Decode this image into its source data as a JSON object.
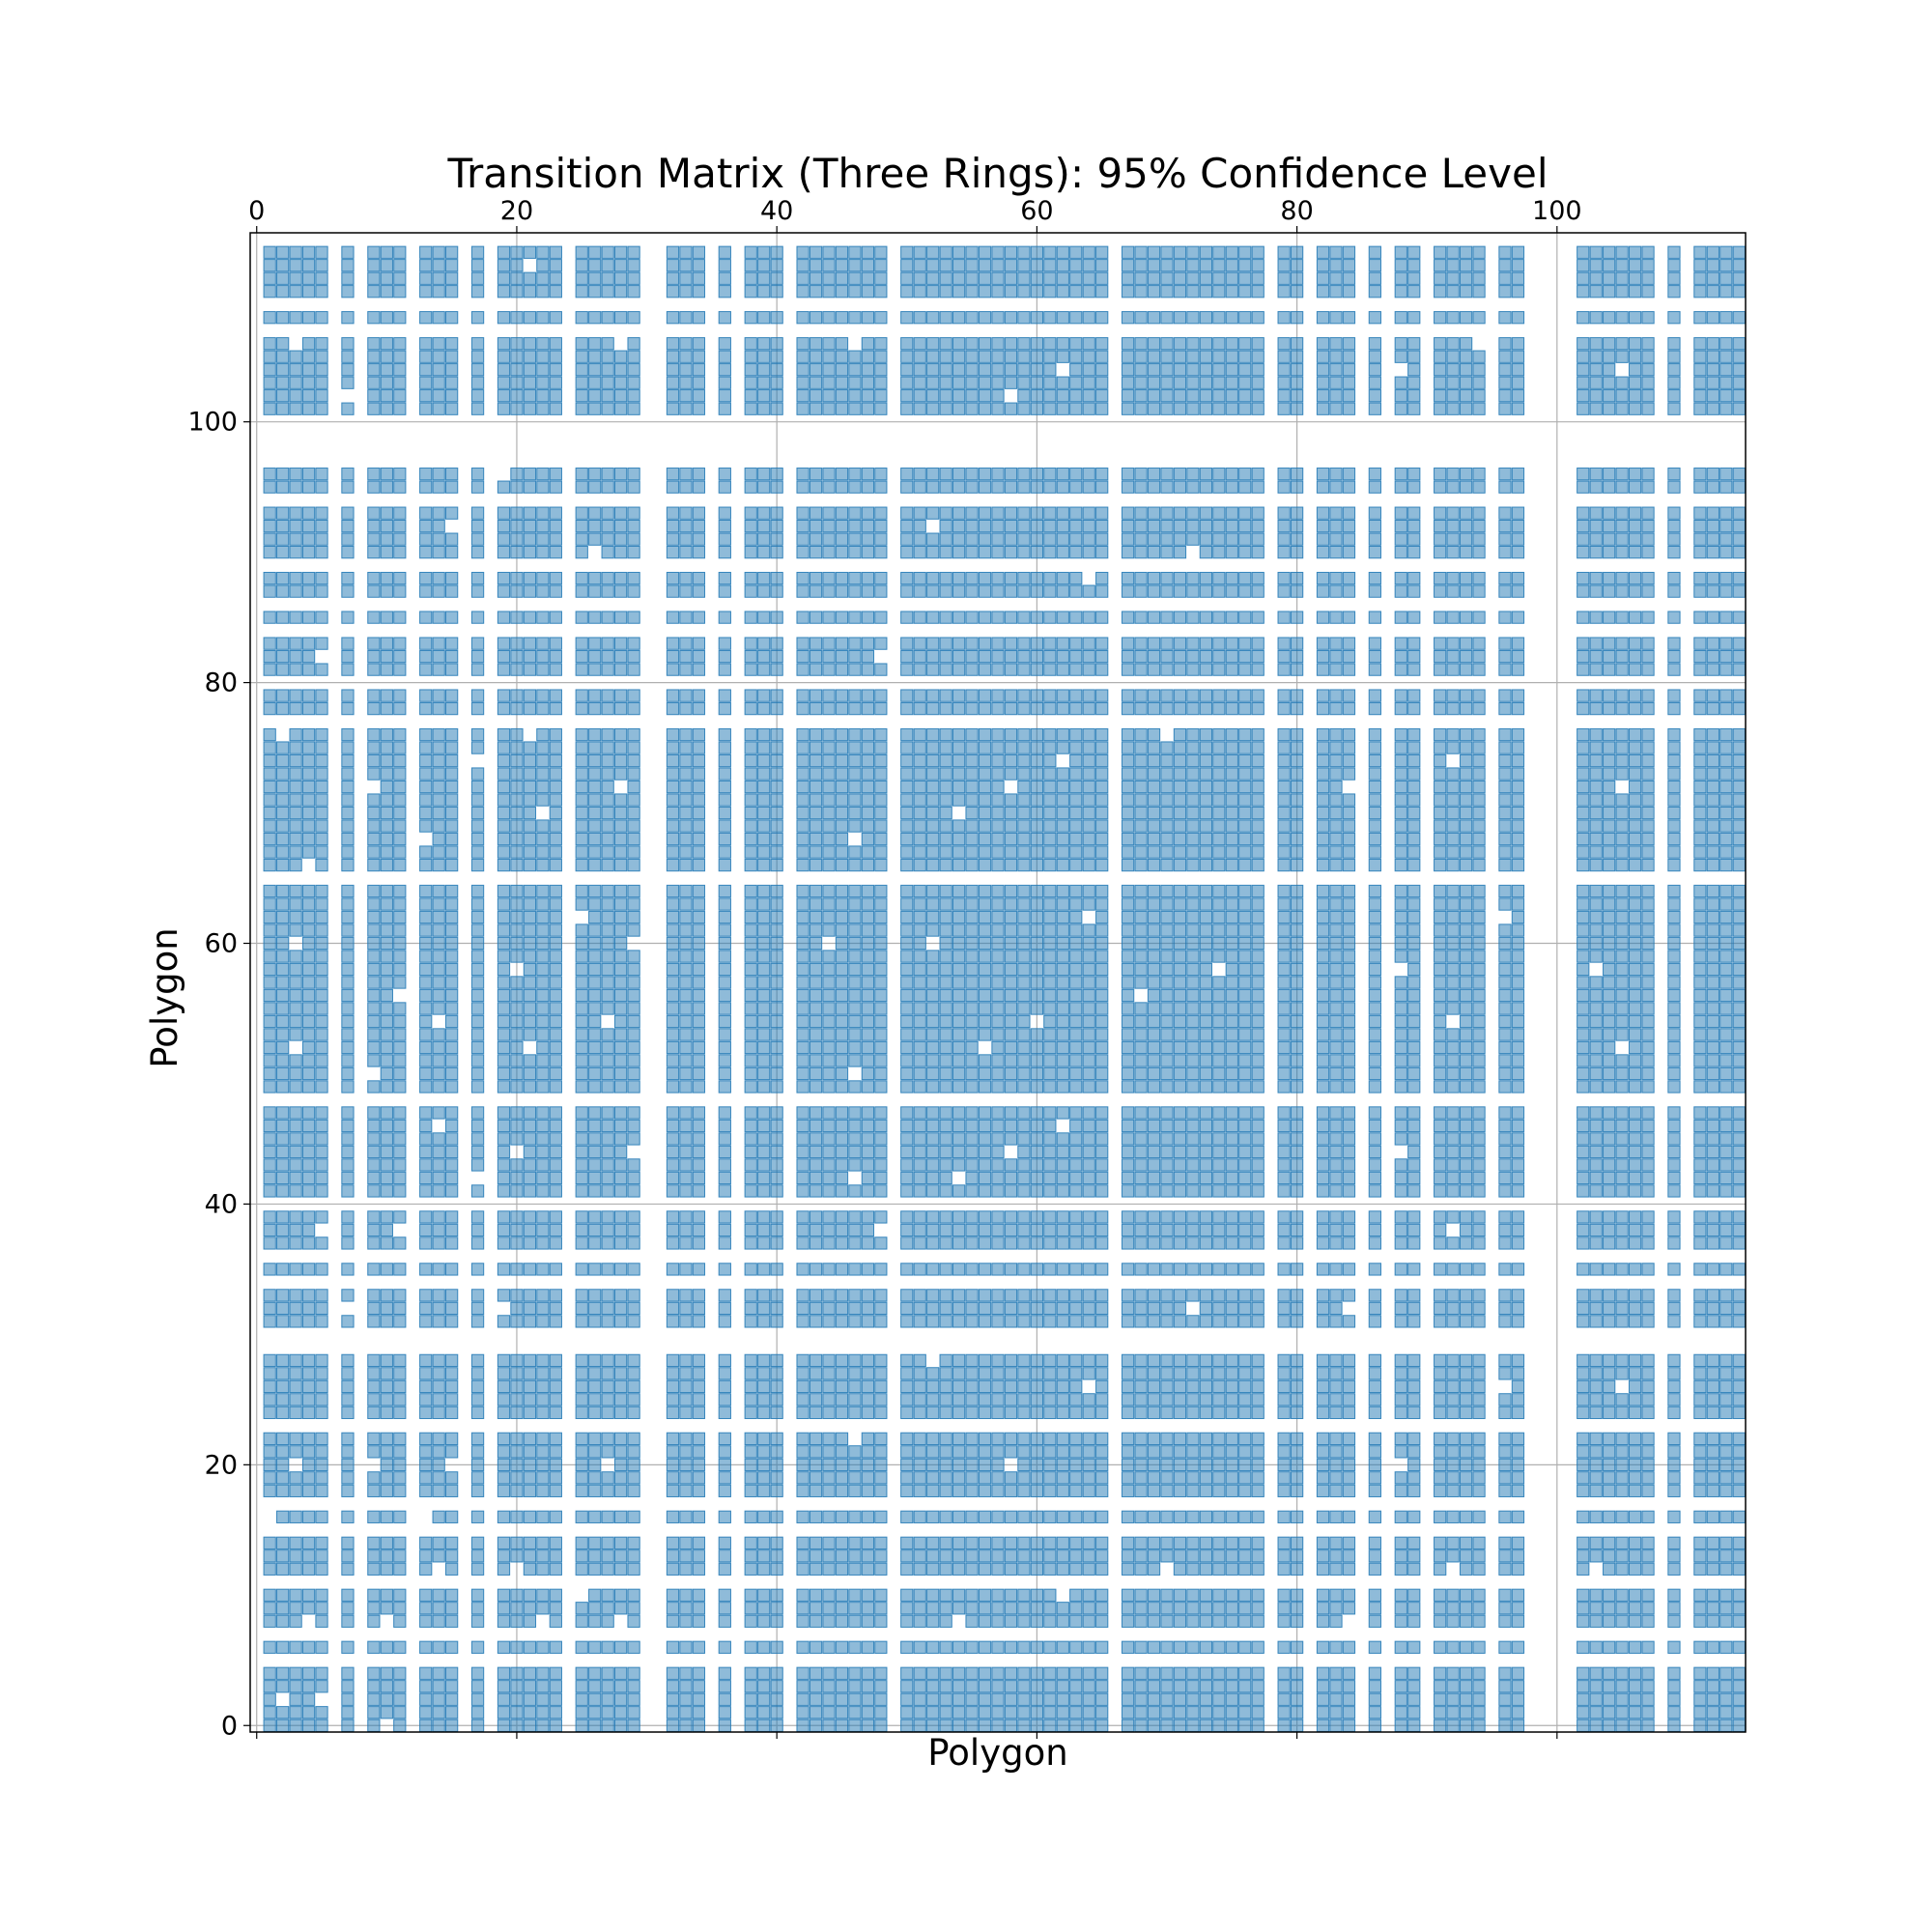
{
  "chart_data": {
    "type": "heatmap",
    "title": "Transition Matrix (Three Rings): 95% Confidence Level",
    "xlabel": "Polygon",
    "ylabel": "Polygon",
    "xlim": [
      -0.5,
      114.5
    ],
    "ylim": [
      114.5,
      -0.5
    ],
    "x_ticks": [
      0,
      20,
      40,
      60,
      80,
      100
    ],
    "x_tick_labels": [
      "0",
      "20",
      "40",
      "60",
      "80",
      "100"
    ],
    "x_ticks_position": "top",
    "y_ticks": [
      0,
      20,
      40,
      60,
      80,
      100
    ],
    "y_tick_labels": [
      "0",
      "20",
      "40",
      "60",
      "80",
      "100"
    ],
    "grid": true,
    "cell_color": "#1f77b4",
    "cell_alpha": 0.5,
    "n_polygons": 115,
    "active_columns": [
      1,
      2,
      3,
      4,
      5,
      7,
      9,
      10,
      11,
      13,
      14,
      15,
      17,
      19,
      20,
      21,
      22,
      23,
      25,
      26,
      27,
      28,
      29,
      32,
      33,
      34,
      36,
      38,
      39,
      40,
      42,
      43,
      44,
      45,
      46,
      47,
      48,
      50,
      51,
      52,
      53,
      54,
      55,
      56,
      57,
      58,
      59,
      60,
      61,
      62,
      63,
      64,
      65,
      67,
      68,
      69,
      70,
      71,
      72,
      73,
      74,
      75,
      76,
      77,
      79,
      80,
      82,
      83,
      84,
      86,
      88,
      89,
      91,
      92,
      93,
      94,
      96,
      97,
      102,
      103,
      104,
      105,
      106,
      107,
      109,
      111,
      112,
      113,
      114
    ],
    "active_rows": [
      1,
      2,
      3,
      4,
      5,
      7,
      9,
      10,
      11,
      13,
      14,
      15,
      17,
      19,
      20,
      21,
      22,
      23,
      25,
      26,
      27,
      28,
      29,
      32,
      33,
      34,
      36,
      38,
      39,
      40,
      42,
      43,
      44,
      45,
      46,
      47,
      48,
      50,
      51,
      52,
      53,
      54,
      55,
      56,
      57,
      58,
      59,
      60,
      61,
      62,
      63,
      64,
      65,
      67,
      68,
      69,
      70,
      71,
      72,
      73,
      74,
      75,
      76,
      77,
      79,
      80,
      82,
      83,
      84,
      86,
      88,
      89,
      91,
      92,
      93,
      94,
      96,
      97,
      102,
      103,
      104,
      105,
      106,
      107,
      109,
      111,
      112,
      113,
      114
    ],
    "gap_cells": [
      [
        1,
        10
      ],
      [
        3,
        2
      ],
      [
        3,
        5
      ],
      [
        9,
        4
      ],
      [
        9,
        10
      ],
      [
        9,
        16
      ],
      [
        9,
        22
      ],
      [
        9,
        28
      ],
      [
        11,
        25
      ],
      [
        13,
        8
      ],
      [
        13,
        14
      ],
      [
        13,
        20
      ],
      [
        17,
        1
      ],
      [
        17,
        13
      ],
      [
        21,
        3
      ],
      [
        21,
        9
      ],
      [
        21,
        15
      ],
      [
        21,
        27
      ],
      [
        25,
        6
      ],
      [
        25,
        12
      ],
      [
        25,
        18
      ],
      [
        27,
        24
      ],
      [
        27,
        30
      ],
      [
        33,
        7
      ],
      [
        33,
        19
      ],
      [
        37,
        1
      ],
      [
        39,
        5
      ],
      [
        39,
        11
      ],
      [
        43,
        8
      ],
      [
        43,
        17
      ],
      [
        45,
        20
      ],
      [
        45,
        29
      ],
      [
        47,
        14
      ],
      [
        51,
        9
      ],
      [
        53,
        3
      ],
      [
        53,
        21
      ],
      [
        55,
        14
      ],
      [
        55,
        27
      ],
      [
        57,
        11
      ],
      [
        59,
        20
      ],
      [
        61,
        3
      ],
      [
        61,
        29
      ],
      [
        63,
        8
      ],
      [
        63,
        25
      ],
      [
        67,
        4
      ],
      [
        69,
        13
      ],
      [
        71,
        22
      ],
      [
        73,
        9
      ],
      [
        73,
        28
      ],
      [
        75,
        17
      ],
      [
        77,
        2
      ],
      [
        77,
        21
      ],
      [
        81,
        10
      ],
      [
        81,
        29
      ],
      [
        83,
        5
      ],
      [
        85,
        14
      ],
      [
        87,
        23
      ],
      [
        91,
        6
      ],
      [
        91,
        26
      ],
      [
        93,
        15
      ],
      [
        95,
        2
      ],
      [
        97,
        19
      ],
      [
        103,
        7
      ],
      [
        103,
        24
      ],
      [
        105,
        12
      ],
      [
        107,
        3
      ],
      [
        107,
        28
      ],
      [
        111,
        16
      ],
      [
        113,
        21
      ],
      [
        43,
        46
      ],
      [
        43,
        54
      ],
      [
        45,
        58
      ],
      [
        47,
        62
      ],
      [
        49,
        72
      ],
      [
        51,
        46
      ],
      [
        53,
        56
      ],
      [
        55,
        60
      ],
      [
        57,
        68
      ],
      [
        59,
        74
      ],
      [
        61,
        44
      ],
      [
        61,
        52
      ],
      [
        63,
        64
      ],
      [
        69,
        46
      ],
      [
        71,
        54
      ],
      [
        73,
        58
      ],
      [
        75,
        62
      ],
      [
        77,
        70
      ],
      [
        83,
        48
      ],
      [
        85,
        56
      ],
      [
        89,
        64
      ],
      [
        91,
        72
      ],
      [
        93,
        52
      ],
      [
        103,
        58
      ],
      [
        105,
        62
      ],
      [
        107,
        46
      ],
      [
        9,
        54
      ],
      [
        11,
        62
      ],
      [
        13,
        70
      ],
      [
        21,
        58
      ],
      [
        23,
        46
      ],
      [
        27,
        64
      ],
      [
        29,
        52
      ],
      [
        33,
        72
      ],
      [
        35,
        56
      ],
      [
        39,
        48
      ],
      [
        55,
        92
      ],
      [
        59,
        88
      ],
      [
        63,
        96
      ],
      [
        73,
        84
      ],
      [
        75,
        92
      ],
      [
        105,
        88
      ],
      [
        107,
        94
      ],
      [
        9,
        84
      ],
      [
        13,
        92
      ],
      [
        21,
        88
      ],
      [
        27,
        96
      ],
      [
        33,
        84
      ],
      [
        39,
        92
      ],
      [
        45,
        88
      ],
      [
        53,
        105
      ],
      [
        59,
        103
      ],
      [
        73,
        105
      ],
      [
        105,
        105
      ],
      [
        27,
        105
      ],
      [
        13,
        103
      ]
    ]
  }
}
